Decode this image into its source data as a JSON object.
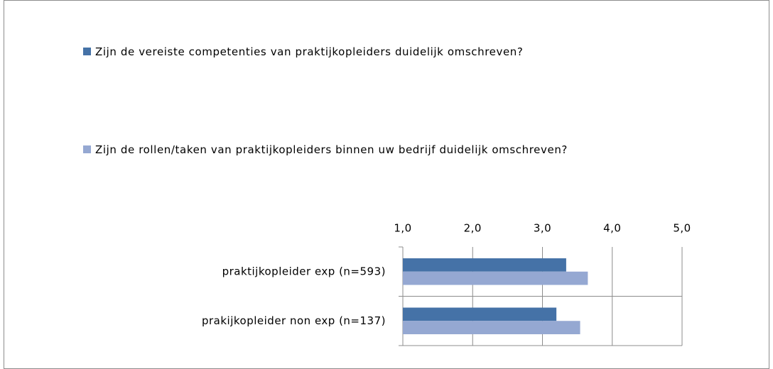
{
  "chart_data": {
    "type": "bar",
    "orientation": "horizontal",
    "categories": [
      "praktijkopleider exp (n=593)",
      "prakijkopleider non exp (n=137)"
    ],
    "series": [
      {
        "name": "Zijn de vereiste competenties van praktijkopleiders duidelijk omschreven?",
        "color": "#4572a7",
        "values": [
          3.34,
          3.2
        ]
      },
      {
        "name": "Zijn de rollen/taken van praktijkopleiders binnen uw bedrijf duidelijk omschreven?",
        "color": "#95a8d2",
        "values": [
          3.65,
          3.54
        ]
      }
    ],
    "xlim": [
      1,
      5
    ],
    "xticks": [
      {
        "value": 1,
        "label": "1,0"
      },
      {
        "value": 2,
        "label": "2,0"
      },
      {
        "value": 3,
        "label": "3,0"
      },
      {
        "value": 4,
        "label": "4,0"
      },
      {
        "value": 5,
        "label": "5,0"
      }
    ],
    "grid": true
  }
}
